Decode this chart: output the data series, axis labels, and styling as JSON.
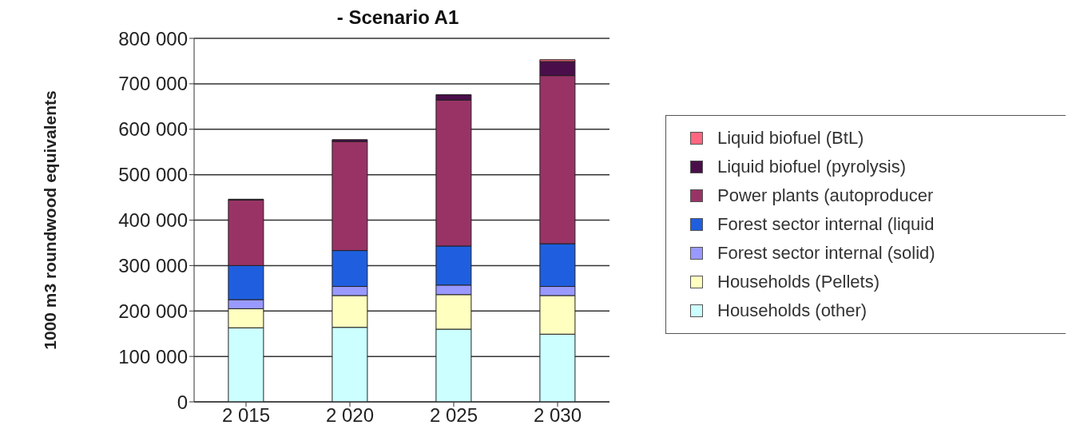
{
  "chart_data": {
    "type": "bar",
    "title": "- Scenario A1",
    "ylabel": "1000 m3 roundwood equivalents",
    "categories": [
      "2 015",
      "2 020",
      "2 025",
      "2 030"
    ],
    "stacked": true,
    "grid": "y",
    "legend": "right",
    "ylim": [
      0,
      800000
    ],
    "yticks": [
      {
        "value": 0,
        "label": "0"
      },
      {
        "value": 100000,
        "label": "100 000"
      },
      {
        "value": 200000,
        "label": "200 000"
      },
      {
        "value": 300000,
        "label": "300 000"
      },
      {
        "value": 400000,
        "label": "400 000"
      },
      {
        "value": 500000,
        "label": "500 000"
      },
      {
        "value": 600000,
        "label": "600 000"
      },
      {
        "value": 700000,
        "label": "700 000"
      },
      {
        "value": 800000,
        "label": "800 000"
      }
    ],
    "series": [
      {
        "name": "Households (other)",
        "color": "#ccffff",
        "values": [
          163000,
          164000,
          160000,
          149000
        ]
      },
      {
        "name": "Households (Pellets)",
        "color": "#ffffc0",
        "values": [
          42000,
          70000,
          76000,
          85000
        ]
      },
      {
        "name": "Forest sector internal (solid)",
        "color": "#9999ff",
        "values": [
          20000,
          20000,
          21000,
          20000
        ]
      },
      {
        "name": "Forest sector internal (liquid",
        "color": "#1f5fdf",
        "values": [
          75000,
          79000,
          86000,
          94000
        ]
      },
      {
        "name": "Power plants (autoproducer",
        "color": "#993366",
        "values": [
          144000,
          240000,
          321000,
          370000
        ]
      },
      {
        "name": "Liquid biofuel (pyrolysis)",
        "color": "#4a0f4a",
        "values": [
          2000,
          4000,
          12000,
          31000
        ]
      },
      {
        "name": "Liquid biofuel (BtL)",
        "color": "#ff6680",
        "values": [
          0,
          0,
          0,
          4000
        ]
      }
    ]
  }
}
